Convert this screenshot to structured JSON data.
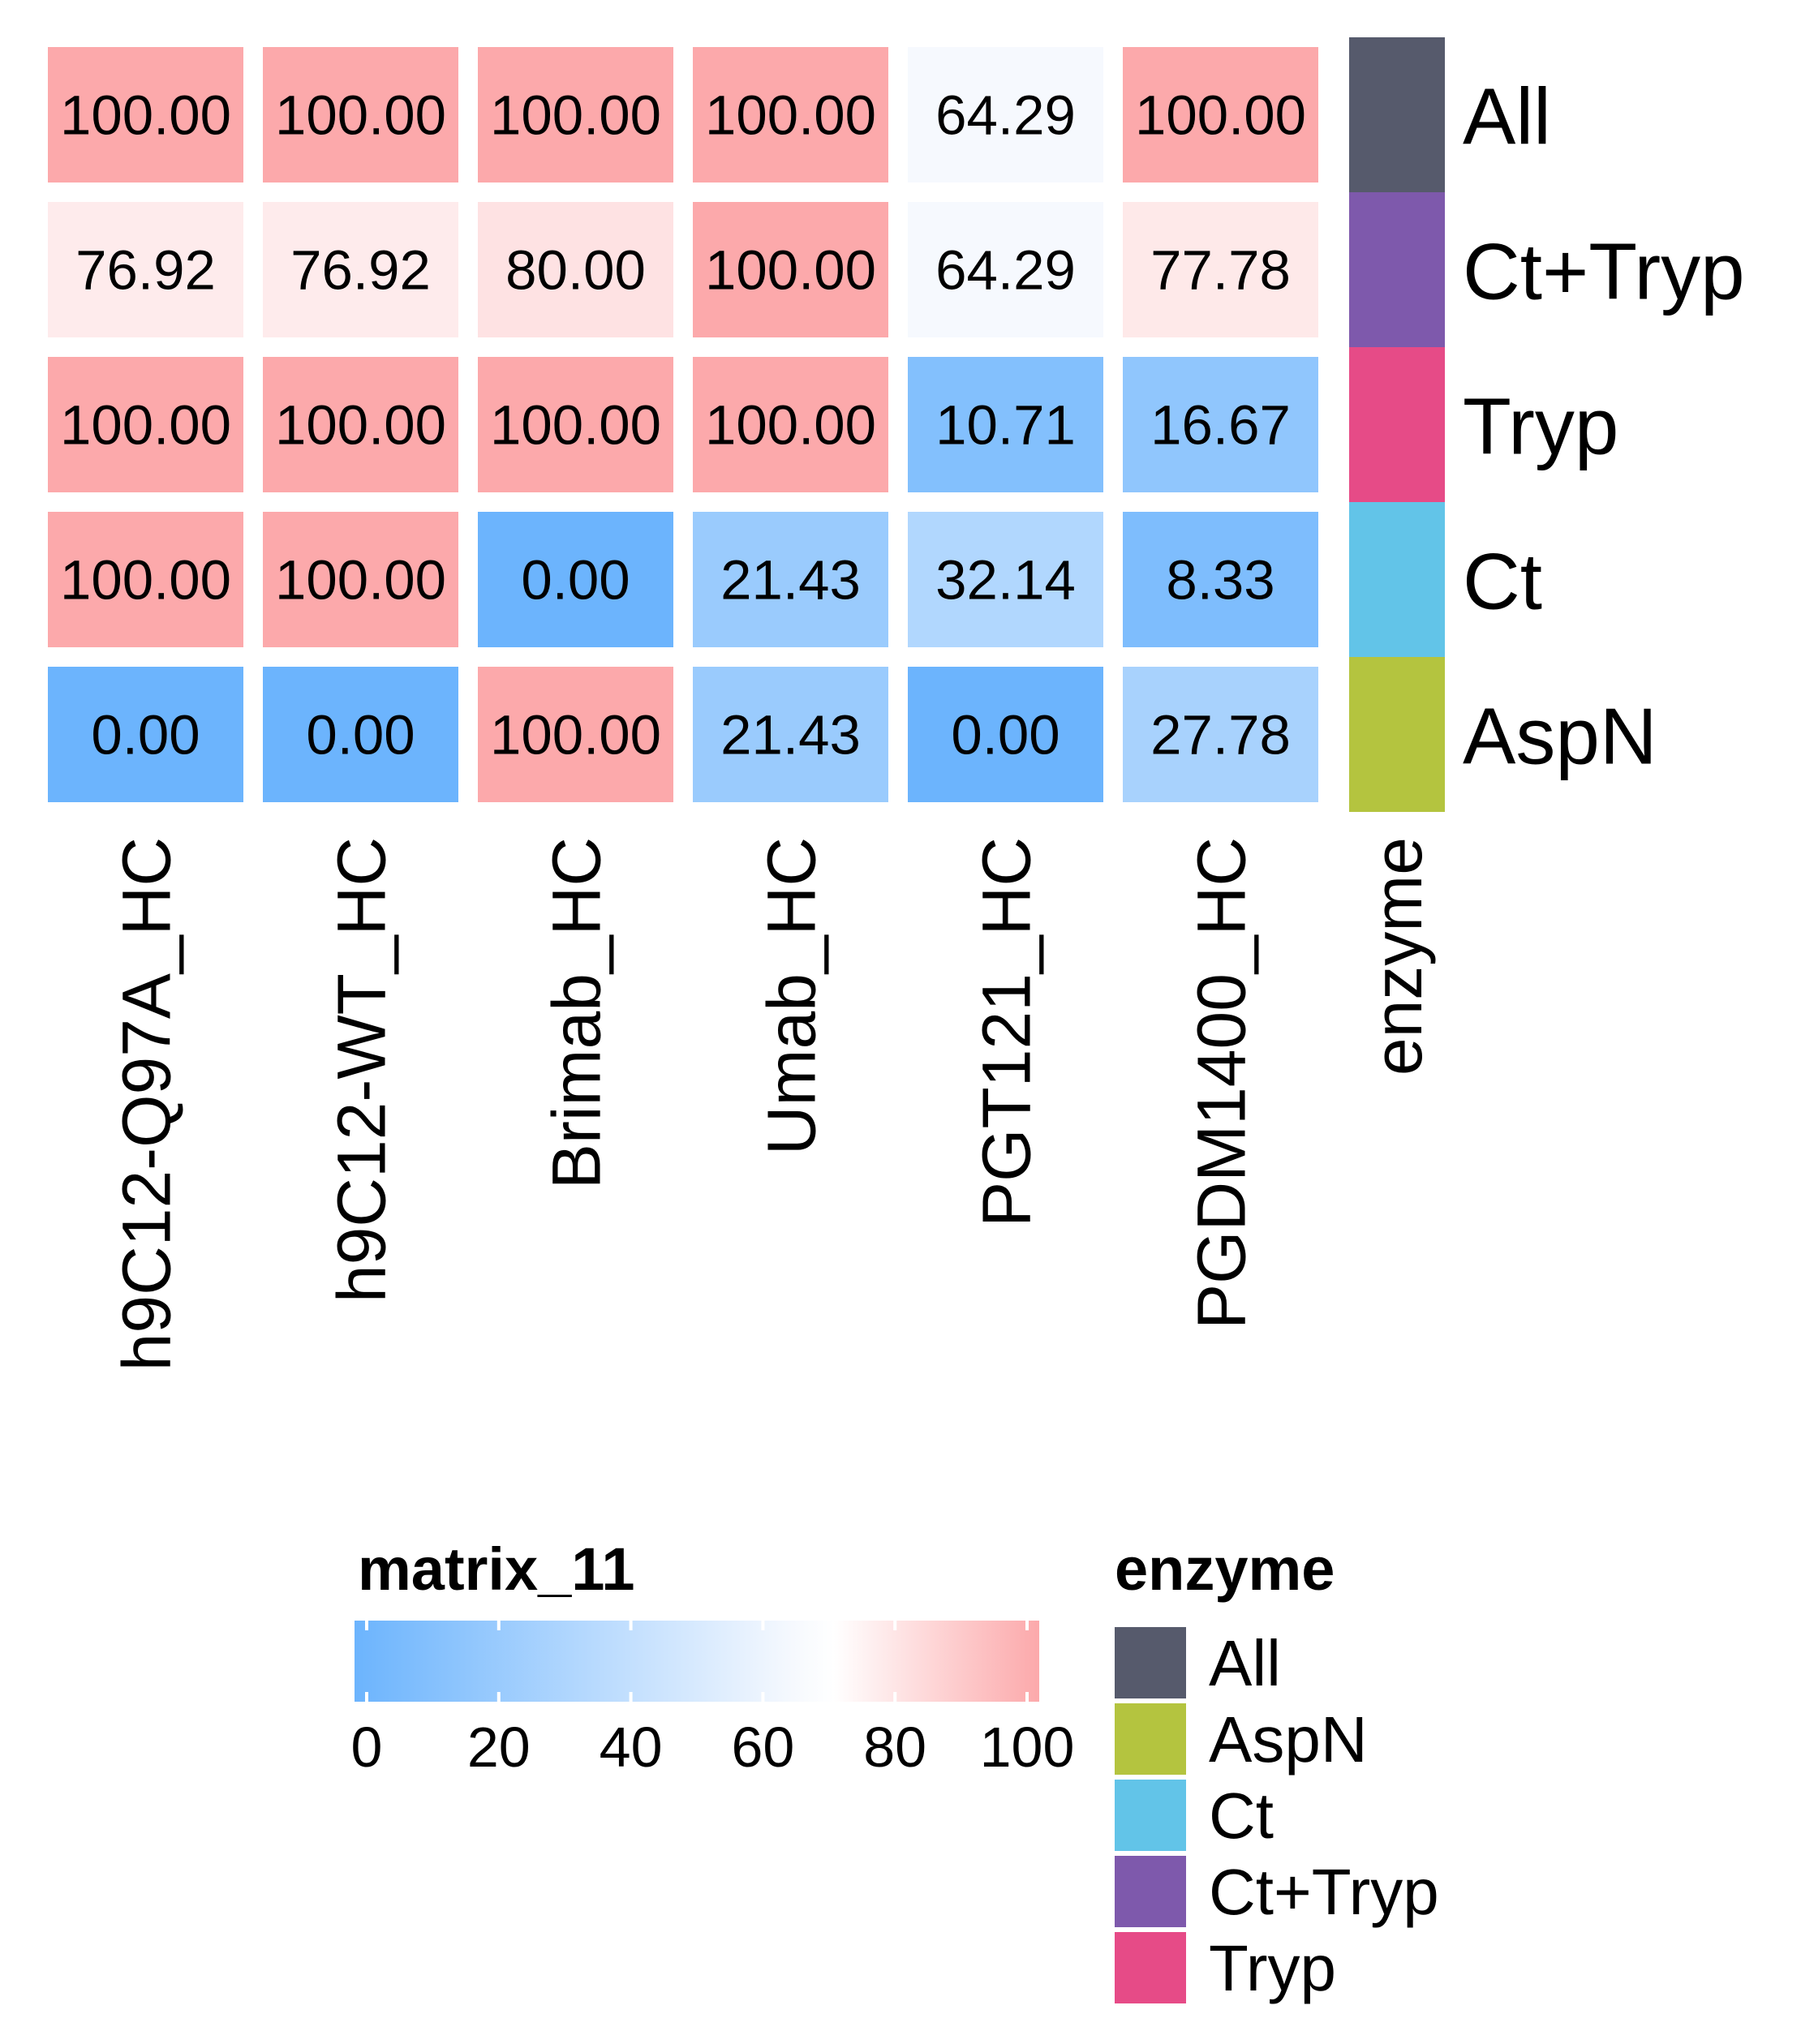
{
  "chart_data": {
    "type": "heatmap",
    "rows": [
      "All",
      "Ct+Tryp",
      "Tryp",
      "Ct",
      "AspN"
    ],
    "columns": [
      "h9C12-Q97A_HC",
      "h9C12-WT_HC",
      "Brimab_HC",
      "Umab_HC",
      "PGT121_HC",
      "PGDM1400_HC"
    ],
    "values": [
      [
        100.0,
        100.0,
        100.0,
        100.0,
        64.29,
        100.0
      ],
      [
        76.92,
        76.92,
        80.0,
        100.0,
        64.29,
        77.78
      ],
      [
        100.0,
        100.0,
        100.0,
        100.0,
        10.71,
        16.67
      ],
      [
        100.0,
        100.0,
        0.0,
        21.43,
        32.14,
        8.33
      ],
      [
        0.0,
        0.0,
        100.0,
        21.43,
        0.0,
        27.78
      ]
    ],
    "value_labels": [
      [
        "100.00",
        "100.00",
        "100.00",
        "100.00",
        "64.29",
        "100.00"
      ],
      [
        "76.92",
        "76.92",
        "80.00",
        "100.00",
        "64.29",
        "77.78"
      ],
      [
        "100.00",
        "100.00",
        "100.00",
        "100.00",
        "10.71",
        "16.67"
      ],
      [
        "100.00",
        "100.00",
        "0.00",
        "21.43",
        "32.14",
        "8.33"
      ],
      [
        "0.00",
        "0.00",
        "100.00",
        "21.43",
        "0.00",
        "27.78"
      ]
    ],
    "color_scale": {
      "title": "matrix_11",
      "range": [
        0,
        100
      ],
      "ticks": [
        "0",
        "20",
        "40",
        "60",
        "80",
        "100"
      ],
      "stops": [
        {
          "value": 0,
          "color": "#6cb4fd"
        },
        {
          "value": 64,
          "color": "#f6f9fe"
        },
        {
          "value": 70,
          "color": "#ffffff"
        },
        {
          "value": 100,
          "color": "#fca9ab"
        }
      ]
    },
    "annotation": {
      "name": "enzyme",
      "row_values": [
        "All",
        "Ct+Tryp",
        "Tryp",
        "Ct",
        "AspN"
      ],
      "legend_title": "enzyme",
      "legend_entries": [
        "All",
        "AspN",
        "Ct",
        "Ct+Tryp",
        "Tryp"
      ],
      "colors": {
        "All": "#565a6c",
        "Ct+Tryp": "#7e59ac",
        "Tryp": "#e64b87",
        "Ct": "#62c4e8",
        "AspN": "#b4c43f"
      }
    }
  }
}
